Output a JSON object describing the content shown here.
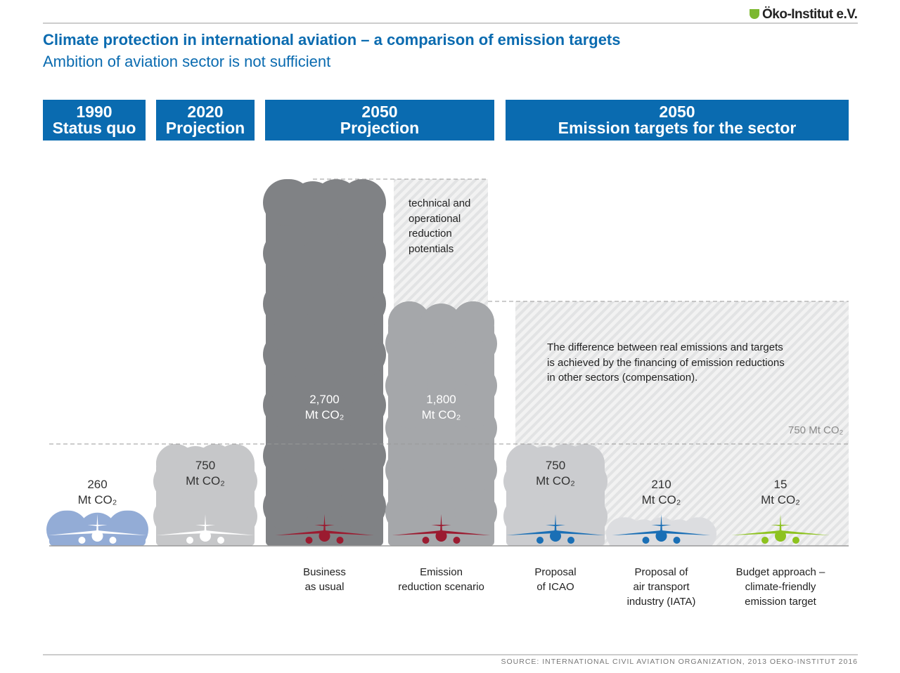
{
  "header": {
    "logo": "Öko-Institut e.V.",
    "title": "Climate protection in international aviation – a comparison of emission targets",
    "subtitle": "Ambition of aviation sector is not sufficient"
  },
  "column_headers": [
    {
      "line1": "1990",
      "line2": "Status quo"
    },
    {
      "line1": "2020",
      "line2": "Projection"
    },
    {
      "line1": "2050",
      "line2": "Projection"
    },
    {
      "line1": "2050",
      "line2": "Emission targets for the sector"
    }
  ],
  "notes": {
    "reduction_potentials": [
      "technical and",
      "operational",
      "reduction",
      "potentials"
    ],
    "compensation": [
      "The difference between real emissions and targets",
      "is achieved by the financing of emission reductions",
      "in other sectors (compensation)."
    ],
    "target_line_label": "750 Mt CO₂"
  },
  "source": "SOURCE: INTERNATIONAL CIVIL AVIATION ORGANIZATION, 2013 OEKO-INSTITUT 2016",
  "chart_data": {
    "type": "bar",
    "title": "Climate protection in international aviation – a comparison of emission targets",
    "unit": "Mt CO₂",
    "ylim": [
      0,
      2700
    ],
    "reference_lines": [
      750,
      1800,
      2700
    ],
    "categories": [
      {
        "label": [],
        "value": 260,
        "value_label": "260",
        "cloud_color": "#93acd6",
        "plane_color": "#ffffff"
      },
      {
        "label": [],
        "value": 750,
        "value_label": "750",
        "cloud_color": "#c6c7c9",
        "plane_color": "#ffffff"
      },
      {
        "label": [
          "Business",
          "as usual"
        ],
        "value": 2700,
        "value_label": "2,700",
        "cloud_color": "#808285",
        "plane_color": "#9b1b30"
      },
      {
        "label": [
          "Emission",
          "reduction scenario"
        ],
        "value": 1800,
        "value_label": "1,800",
        "cloud_color": "#a5a7aa",
        "plane_color": "#9b1b30"
      },
      {
        "label": [
          "Proposal",
          "of ICAO"
        ],
        "value": 750,
        "value_label": "750",
        "cloud_color": "#cbcccf",
        "plane_color": "#1a6fb5"
      },
      {
        "label": [
          "Proposal of",
          "air transport",
          "industry (IATA)"
        ],
        "value": 210,
        "value_label": "210",
        "cloud_color": "#dcdde0",
        "plane_color": "#1a6fb5"
      },
      {
        "label": [
          "Budget approach –",
          "climate-friendly",
          "emission target"
        ],
        "value": 15,
        "value_label": "15",
        "cloud_color": "#e5e6e8",
        "plane_color": "#8dc21f"
      }
    ]
  }
}
